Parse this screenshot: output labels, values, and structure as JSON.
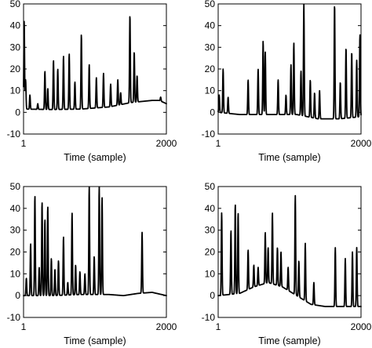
{
  "chart_data": [
    {
      "type": "line",
      "title": "",
      "xlabel": "Time (sample)",
      "ylabel": "",
      "xlim": [
        1,
        2000
      ],
      "ylim": [
        -10,
        50
      ],
      "xticks": [
        "1",
        "2000"
      ],
      "yticks": [
        "-10",
        "0",
        "10",
        "20",
        "30",
        "40",
        "50"
      ],
      "grid": false,
      "baseline": [
        [
          1,
          1.5
        ],
        [
          400,
          1.3
        ],
        [
          800,
          1.5
        ],
        [
          1200,
          2.5
        ],
        [
          1500,
          4.5
        ],
        [
          1800,
          5.5
        ],
        [
          1900,
          5.5
        ],
        [
          2000,
          4
        ]
      ],
      "peaks": [
        [
          10,
          42
        ],
        [
          30,
          15
        ],
        [
          90,
          8
        ],
        [
          200,
          4
        ],
        [
          300,
          19
        ],
        [
          340,
          11
        ],
        [
          420,
          24
        ],
        [
          480,
          20
        ],
        [
          560,
          26
        ],
        [
          640,
          27
        ],
        [
          720,
          14
        ],
        [
          810,
          36
        ],
        [
          920,
          22
        ],
        [
          1020,
          16
        ],
        [
          1120,
          18
        ],
        [
          1220,
          13
        ],
        [
          1320,
          15
        ],
        [
          1360,
          9
        ],
        [
          1490,
          45
        ],
        [
          1550,
          28
        ],
        [
          1590,
          17
        ],
        [
          1920,
          7
        ]
      ]
    },
    {
      "type": "line",
      "title": "",
      "xlabel": "Time (sample)",
      "ylabel": "",
      "xlim": [
        1,
        2000
      ],
      "ylim": [
        -10,
        50
      ],
      "xticks": [
        "1",
        "2000"
      ],
      "yticks": [
        "-10",
        "0",
        "10",
        "20",
        "30",
        "40",
        "50"
      ],
      "grid": false,
      "baseline": [
        [
          1,
          0
        ],
        [
          300,
          -1
        ],
        [
          700,
          -1
        ],
        [
          1100,
          -1
        ],
        [
          1400,
          -3
        ],
        [
          1700,
          -3
        ],
        [
          2000,
          -2
        ]
      ],
      "peaks": [
        [
          15,
          8
        ],
        [
          70,
          20
        ],
        [
          140,
          7
        ],
        [
          420,
          15
        ],
        [
          560,
          20
        ],
        [
          630,
          33
        ],
        [
          660,
          28
        ],
        [
          840,
          15
        ],
        [
          950,
          8
        ],
        [
          1020,
          22
        ],
        [
          1060,
          32
        ],
        [
          1160,
          19
        ],
        [
          1200,
          50
        ],
        [
          1290,
          15
        ],
        [
          1350,
          9
        ],
        [
          1420,
          10
        ],
        [
          1630,
          50
        ],
        [
          1710,
          14
        ],
        [
          1790,
          30
        ],
        [
          1870,
          28
        ],
        [
          1940,
          24
        ],
        [
          1985,
          36
        ]
      ]
    },
    {
      "type": "line",
      "title": "",
      "xlabel": "Time (sample)",
      "ylabel": "",
      "xlim": [
        1,
        2000
      ],
      "ylim": [
        -10,
        50
      ],
      "xticks": [
        "1",
        "2000"
      ],
      "yticks": [
        "-10",
        "0",
        "10",
        "20",
        "30",
        "40",
        "50"
      ],
      "grid": false,
      "baseline": [
        [
          1,
          0
        ],
        [
          400,
          0
        ],
        [
          800,
          0.5
        ],
        [
          1200,
          0.5
        ],
        [
          1400,
          0
        ],
        [
          1600,
          1
        ],
        [
          1800,
          1.5
        ],
        [
          2000,
          0
        ]
      ],
      "peaks": [
        [
          40,
          8
        ],
        [
          100,
          24
        ],
        [
          160,
          46
        ],
        [
          220,
          13
        ],
        [
          260,
          43
        ],
        [
          300,
          35
        ],
        [
          340,
          41
        ],
        [
          390,
          17
        ],
        [
          440,
          12
        ],
        [
          490,
          16
        ],
        [
          560,
          27
        ],
        [
          620,
          6
        ],
        [
          680,
          38
        ],
        [
          730,
          14
        ],
        [
          790,
          11
        ],
        [
          860,
          10
        ],
        [
          920,
          50
        ],
        [
          990,
          18
        ],
        [
          1060,
          50
        ],
        [
          1100,
          45
        ],
        [
          1660,
          29
        ]
      ]
    },
    {
      "type": "line",
      "title": "",
      "xlabel": "Time (sample)",
      "ylabel": "",
      "xlim": [
        1,
        2000
      ],
      "ylim": [
        -10,
        50
      ],
      "xticks": [
        "1",
        "2000"
      ],
      "yticks": [
        "-10",
        "0",
        "10",
        "20",
        "30",
        "40",
        "50"
      ],
      "grid": false,
      "baseline": [
        [
          1,
          0
        ],
        [
          300,
          1
        ],
        [
          500,
          4
        ],
        [
          700,
          6
        ],
        [
          900,
          4
        ],
        [
          1100,
          0
        ],
        [
          1300,
          -4
        ],
        [
          1500,
          -5
        ],
        [
          1700,
          -5
        ],
        [
          2000,
          -5
        ]
      ],
      "peaks": [
        [
          50,
          38
        ],
        [
          180,
          30
        ],
        [
          240,
          42
        ],
        [
          280,
          38
        ],
        [
          420,
          21
        ],
        [
          500,
          14
        ],
        [
          560,
          13
        ],
        [
          660,
          29
        ],
        [
          700,
          22
        ],
        [
          760,
          38
        ],
        [
          830,
          22
        ],
        [
          880,
          20
        ],
        [
          980,
          13
        ],
        [
          1080,
          46
        ],
        [
          1130,
          16
        ],
        [
          1220,
          24
        ],
        [
          1340,
          6
        ],
        [
          1640,
          22
        ],
        [
          1780,
          17
        ],
        [
          1880,
          20
        ],
        [
          1940,
          22
        ]
      ]
    }
  ]
}
